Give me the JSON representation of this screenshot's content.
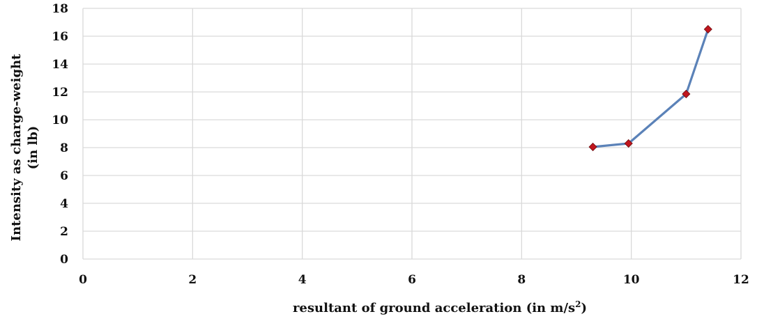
{
  "chart_data": {
    "type": "scatter",
    "xlabel": "resultant of ground acceleration (in m/s",
    "xlabel_sup": "2",
    "xlabel_tail": ")",
    "ylabel_line1": "Intensity as charge-weight",
    "ylabel_line2": "(in lb)",
    "xlim": [
      0,
      12
    ],
    "ylim": [
      0,
      18
    ],
    "x_ticks": [
      "0",
      "2",
      "4",
      "6",
      "8",
      "10",
      "12"
    ],
    "y_ticks": [
      "0",
      "2",
      "4",
      "6",
      "8",
      "10",
      "12",
      "14",
      "16",
      "18"
    ],
    "grid": true,
    "legend": "none",
    "series": [
      {
        "points": [
          {
            "x": 9.3,
            "y": 8.05
          },
          {
            "x": 9.95,
            "y": 8.3
          },
          {
            "x": 11.0,
            "y": 11.85
          },
          {
            "x": 11.4,
            "y": 16.5
          }
        ],
        "line_color": "#5b82b8",
        "marker_color": "#c0161e",
        "marker": "diamond"
      }
    ]
  }
}
